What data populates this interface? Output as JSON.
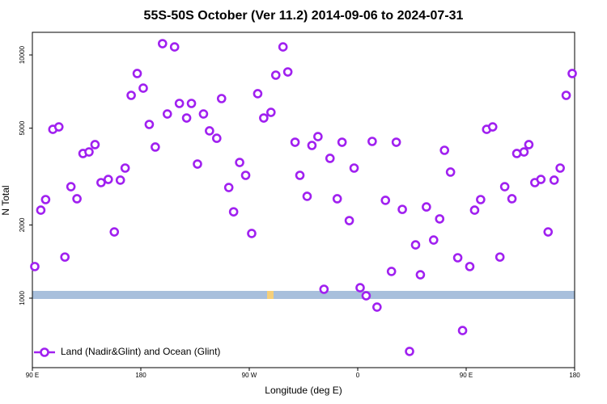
{
  "chart_data": {
    "type": "scatter",
    "title": "55S-50S October (Ver 11.2)   2014-09-06 to 2024-07-31",
    "x_label": "Longitude (deg E)",
    "y_label": "N Total",
    "x": [
      92,
      97,
      101,
      107,
      112,
      117,
      122,
      127,
      132,
      137,
      142,
      147,
      153,
      158,
      163,
      167,
      172,
      177,
      182,
      187,
      192,
      198,
      202,
      208,
      212,
      218,
      222,
      227,
      232,
      237,
      243,
      247,
      253,
      257,
      262,
      267,
      272,
      277,
      282,
      288,
      292,
      298,
      302,
      308,
      312,
      318,
      322,
      327,
      332,
      337,
      343,
      347,
      353,
      357,
      362,
      367,
      372,
      376,
      383,
      388,
      392,
      397,
      403,
      408,
      412,
      417,
      423,
      428,
      432,
      437,
      443,
      447,
      453,
      457,
      462,
      467,
      472,
      478,
      482,
      488,
      492,
      498,
      502,
      507,
      512,
      518,
      523,
      528,
      533,
      538
    ],
    "series": [
      {
        "name": "Land (Nadir&Glint) and Ocean (Glint)",
        "color": "#a020f0",
        "values": [
          1349,
          2301,
          2543,
          4945,
          5061,
          1476,
          2873,
          2563,
          3934,
          3992,
          4279,
          2986,
          3078,
          1872,
          3057,
          3427,
          6823,
          8390,
          7305,
          5180,
          4182,
          11130,
          5719,
          10790,
          6320,
          5506,
          6320,
          3560,
          5719,
          4874,
          4545,
          6617,
          2851,
          2265,
          3614,
          3199,
          1845,
          6930,
          5506,
          5808,
          8260,
          10790,
          8515,
          4377,
          3199,
          2623,
          4246,
          4616,
          1088,
          3757,
          2563,
          4377,
          2084,
          3427,
          1104,
          1023,
          4411,
          919,
          2525,
          1288,
          4377,
          2318,
          604,
          1656,
          1248,
          2372,
          1734,
          2118,
          4055,
          3299,
          1466,
          736,
          1349,
          2301,
          2543,
          4945,
          5061,
          1476,
          2873,
          2563,
          3934,
          3992,
          4279,
          2986,
          3078,
          1872,
          3057,
          3427,
          6823,
          8390
        ]
      }
    ],
    "xlim": [
      90,
      540
    ],
    "xticks": [
      {
        "value": 90,
        "label": "90 E"
      },
      180,
      {
        "value": 270,
        "label": "90 W"
      },
      {
        "value": 360,
        "label": "0"
      },
      {
        "value": 450,
        "label": "90 E"
      },
      {
        "value": 540,
        "label": "180"
      }
    ],
    "ylim": [
      518,
      12390
    ],
    "yticks": [
      1000,
      2000,
      5000,
      10000
    ],
    "ylog": true,
    "legend": "bottom-left"
  }
}
